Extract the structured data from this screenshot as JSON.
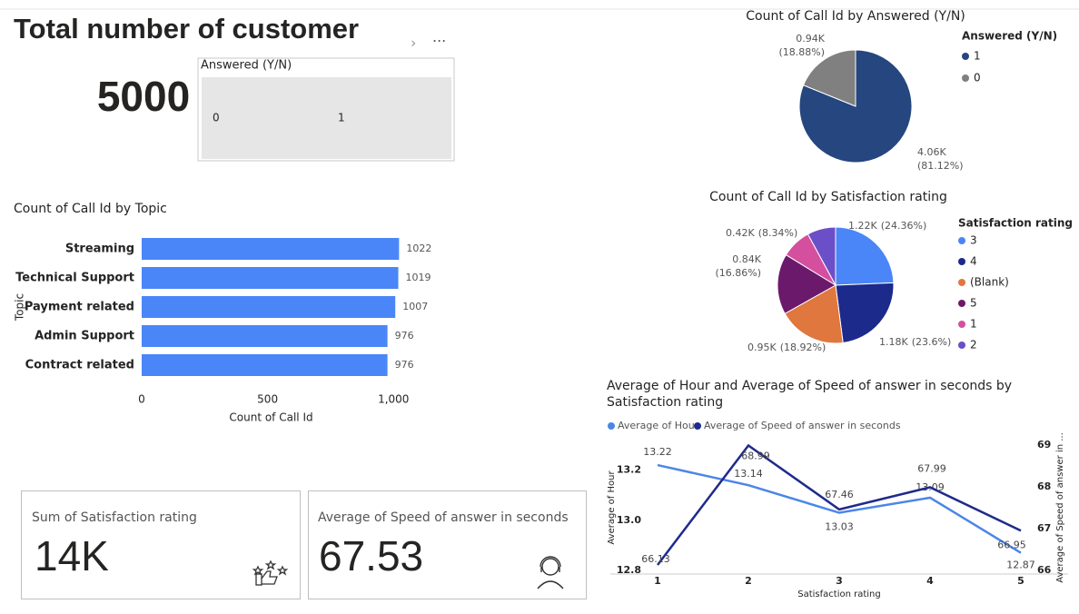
{
  "header": {
    "title": "Total number of customer"
  },
  "kpi": {
    "value": 5000
  },
  "slicer": {
    "title": "Answered (Y/N)",
    "options": [
      "0",
      "1"
    ]
  },
  "cards": [
    {
      "label": "Sum of Satisfaction rating",
      "value": "14K"
    },
    {
      "label": "Average of Speed of answer in seconds",
      "value": 67.53
    }
  ],
  "chart_data": [
    {
      "type": "bar",
      "orientation": "horizontal",
      "title": "Count of Call Id by Topic",
      "categories": [
        "Streaming",
        "Technical Support",
        "Payment related",
        "Admin Support",
        "Contract related"
      ],
      "values": [
        1022,
        1019,
        1007,
        976,
        976
      ],
      "color": "#4a86f7",
      "xlim": [
        0,
        1100
      ],
      "xticks": [
        0,
        500,
        {
          "value": 1000,
          "label": "1,000"
        }
      ],
      "x_label": "Count of Call Id",
      "y_label": "Topic"
    },
    {
      "type": "pie",
      "title": "Count of Call Id by Answered (Y/N)",
      "legend_title": "Answered (Y/N)",
      "categories": [
        "1",
        "0"
      ],
      "values": [
        4056,
        944
      ],
      "value_labels": [
        "4.06K",
        "0.94K"
      ],
      "percents": [
        81.12,
        18.88
      ],
      "percent_labels": [
        "(81.12%)",
        "(18.88%)"
      ],
      "colors": [
        "#25467f",
        "#808080"
      ]
    },
    {
      "type": "pie",
      "title": "Count of Call Id by Satisfaction rating",
      "legend_title": "Satisfaction rating",
      "categories": [
        "3",
        "4",
        "(Blank)",
        "5",
        "1",
        "2"
      ],
      "values": [
        1218,
        1180,
        946,
        843,
        417,
        396
      ],
      "value_labels": [
        "1.22K",
        "1.18K",
        "0.95K",
        "0.84K",
        "0.42K",
        null
      ],
      "percents": [
        24.36,
        23.6,
        18.92,
        16.86,
        8.34,
        7.92
      ],
      "percent_labels": [
        "(24.36%)",
        "(23.6%)",
        "(18.92%)",
        "(16.86%)",
        "(8.34%)",
        null
      ],
      "colors": [
        "#4a86f7",
        "#1c2a8c",
        "#e0773e",
        "#6b1a6b",
        "#d54f9f",
        "#6b4fc8"
      ]
    },
    {
      "type": "line",
      "title": "Average of Hour and Average of Speed of answer in seconds by Satisfaction rating",
      "categories": [
        "1",
        "2",
        "3",
        "4",
        "5"
      ],
      "series": [
        {
          "name": "Average of Hour",
          "color": "#4a86e8",
          "values": [
            13.22,
            13.14,
            13.03,
            13.09,
            12.87
          ]
        },
        {
          "name": "Average of Speed of answer in seconds",
          "color": "#1f2a8c",
          "axis": "y2",
          "values": [
            66.13,
            68.99,
            67.46,
            67.99,
            66.95
          ]
        }
      ],
      "ylim": [
        12.8,
        13.3
      ],
      "yticks": [
        12.8,
        {
          "value": 13.0,
          "label": "13.0"
        },
        13.2
      ],
      "y2lim": [
        66,
        69
      ],
      "y2ticks": [
        66,
        67,
        68,
        69
      ],
      "x_label": "Satisfaction rating",
      "y_label": "Average of Hour",
      "y2_label": "Average of Speed of answer in ..."
    }
  ]
}
